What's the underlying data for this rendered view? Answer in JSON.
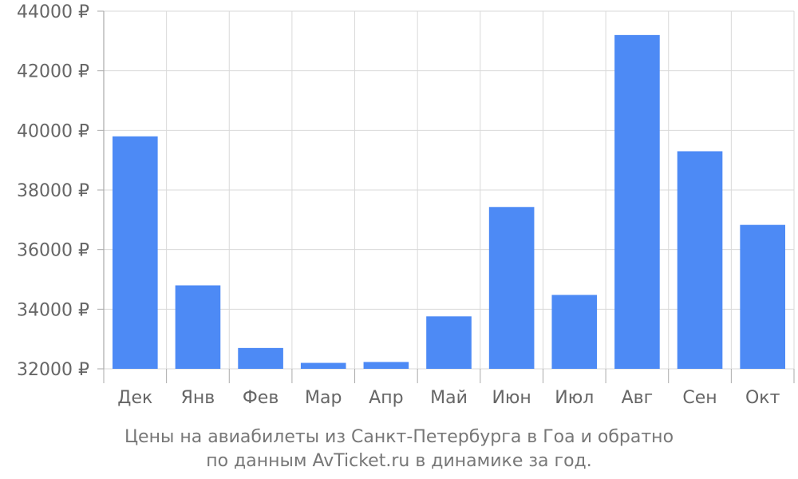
{
  "chart_data": {
    "type": "bar",
    "categories": [
      "Дек",
      "Янв",
      "Фев",
      "Мар",
      "Апр",
      "Май",
      "Июн",
      "Июл",
      "Авг",
      "Сен",
      "Окт"
    ],
    "values": [
      39800,
      34800,
      32700,
      32200,
      32230,
      33760,
      37430,
      34480,
      43200,
      39300,
      36830
    ],
    "ylim": [
      32000,
      44000
    ],
    "yticks": [
      32000,
      34000,
      36000,
      38000,
      40000,
      42000,
      44000
    ],
    "ytick_suffix": " ₽",
    "grid": true,
    "bar_color": "#4d8af5",
    "grid_color": "#d9d9d9",
    "axis_color": "#aaaaaa",
    "text_color": "#666666"
  },
  "caption": {
    "line1": "Цены на авиабилеты из Санкт-Петербурга в Гоа и обратно",
    "line2": "по данным AvTicket.ru в динамике за год."
  }
}
